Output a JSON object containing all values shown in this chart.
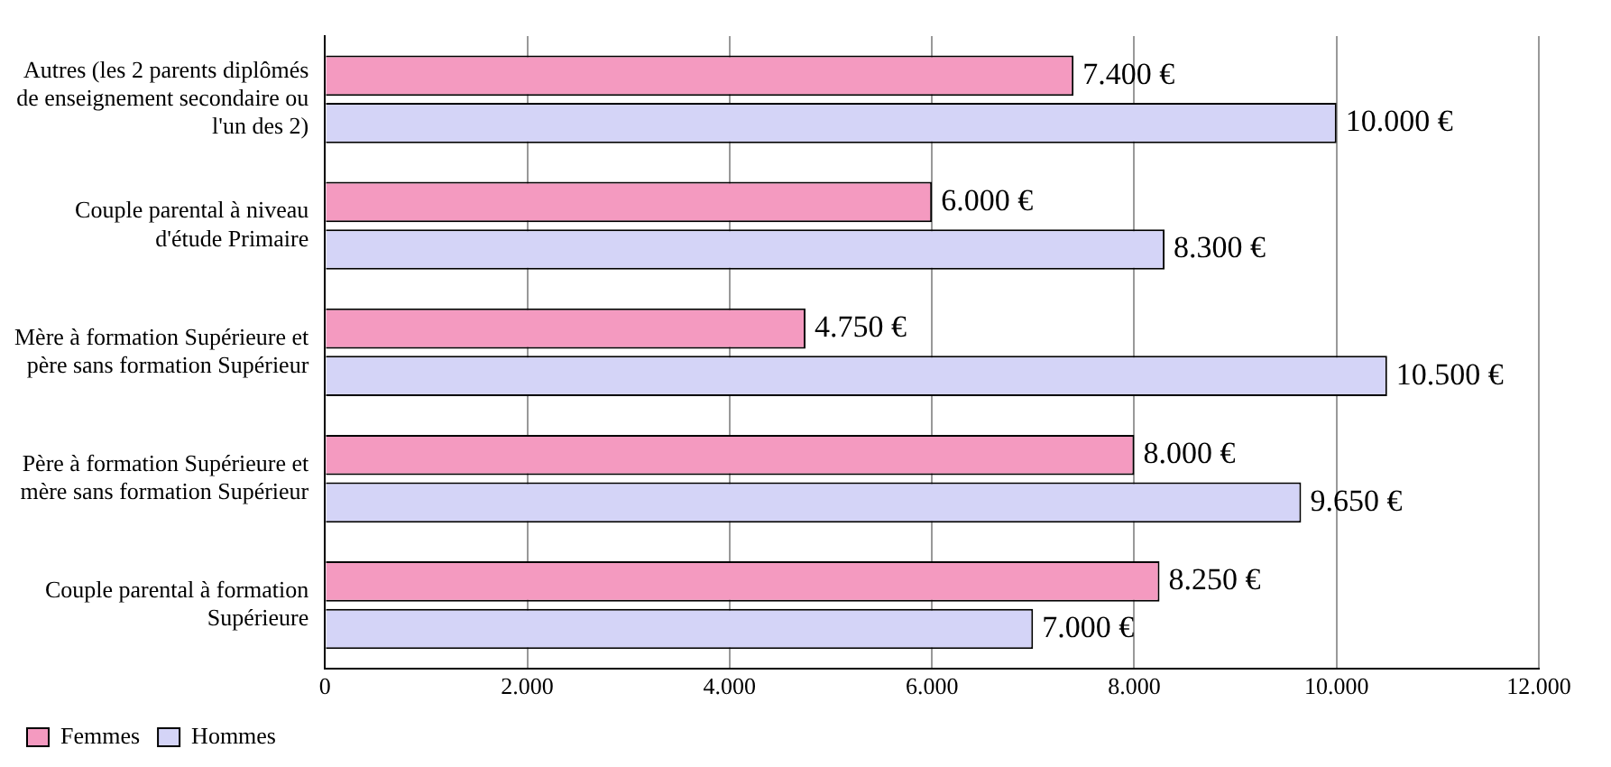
{
  "chart_data": {
    "type": "bar",
    "orientation": "horizontal",
    "categories": [
      "Autres (les 2 parents diplômés de enseignement secondaire ou l'un des 2)",
      "Couple parental à niveau d'étude Primaire",
      "Mère à formation Supérieure et père sans formation Supérieur",
      "Père à formation Supérieure et mère sans formation Supérieur",
      "Couple parental à formation Supérieure"
    ],
    "series": [
      {
        "name": "Femmes",
        "color": "#f49ac0",
        "values": [
          7400,
          6000,
          4750,
          8000,
          8250
        ],
        "value_labels": [
          "7.400 €",
          "6.000 €",
          "4.750 €",
          "8.000 €",
          "8.250 €"
        ]
      },
      {
        "name": "Hommes",
        "color": "#d4d4f7",
        "values": [
          10000,
          8300,
          10500,
          9650,
          7000
        ],
        "value_labels": [
          "10.000 €",
          "8.300 €",
          "10.500 €",
          "9.650 €",
          "7.000 €"
        ]
      }
    ],
    "xlim": [
      0,
      12000
    ],
    "xticks": [
      {
        "value": 0,
        "label": "0"
      },
      {
        "value": 2000,
        "label": "2.000"
      },
      {
        "value": 4000,
        "label": "4.000"
      },
      {
        "value": 6000,
        "label": "6.000"
      },
      {
        "value": 8000,
        "label": "8.000"
      },
      {
        "value": 10000,
        "label": "10.000"
      },
      {
        "value": 12000,
        "label": "12.000"
      }
    ],
    "grid": "x",
    "legend": "bottom left"
  }
}
